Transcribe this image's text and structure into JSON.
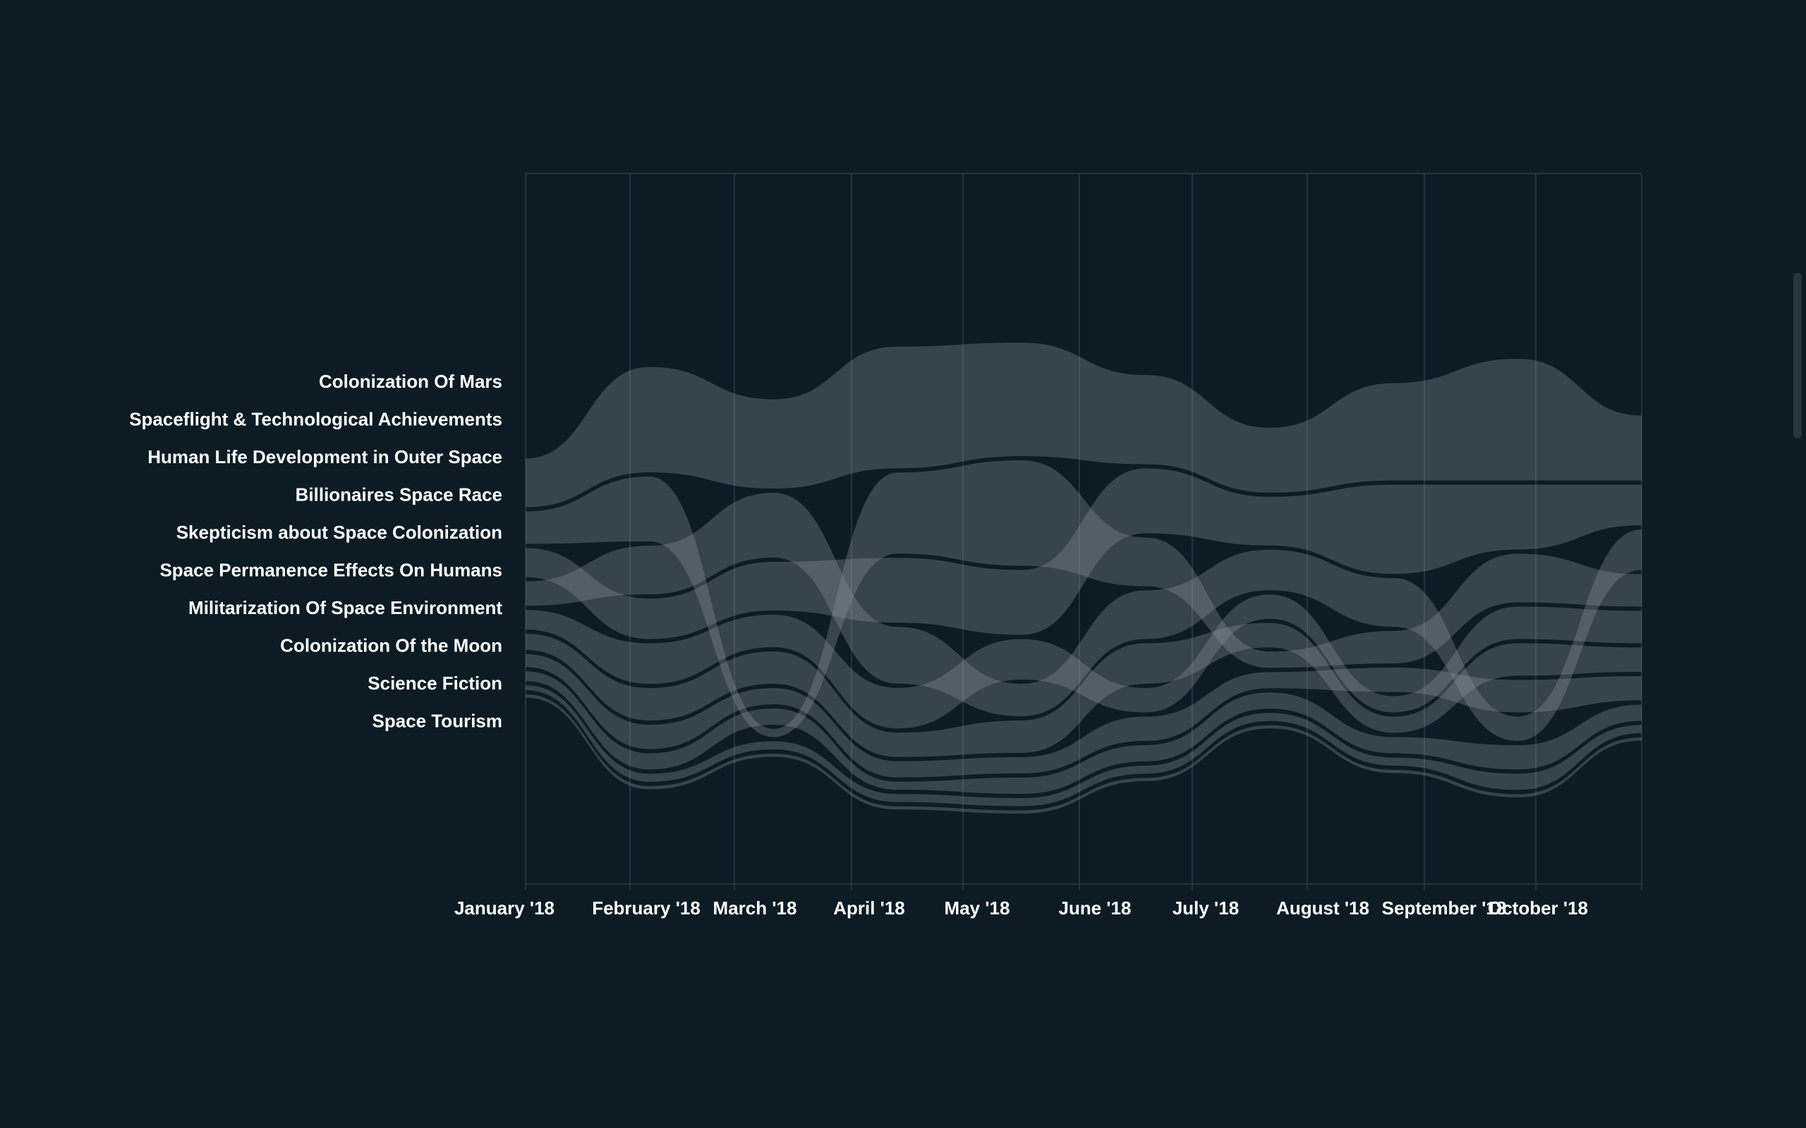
{
  "chart_data": {
    "type": "area",
    "categories": [
      "Colonization Of Mars",
      "Spaceflight & Technological Achievements",
      "Human Life Development in Outer Space",
      "Billionaires Space Race",
      "Skepticism about Space Colonization",
      "Space Permanence Effects On Humans",
      "Militarization Of Space Environment",
      "Colonization Of the Moon",
      "Science Fiction",
      "Space Tourism"
    ],
    "x": [
      "January '18",
      "February '18",
      "March '18",
      "April '18",
      "May '18",
      "June '18",
      "July '18",
      "August '18",
      "September '18",
      "October '18"
    ],
    "grid": true,
    "legend": "left",
    "colors": {
      "background": "#0d1c24",
      "band": "#8c98a0",
      "text": "#ffffff",
      "grid": "#2c3d46"
    },
    "series": [
      {
        "name": "Colonization Of Mars",
        "values": [
          30,
          65,
          55,
          75,
          70,
          55,
          40,
          60,
          75,
          40
        ]
      },
      {
        "name": "Spaceflight & Technological Achievements",
        "values": [
          20,
          40,
          5,
          50,
          65,
          30,
          10,
          20,
          30,
          20
        ]
      },
      {
        "name": "Human Life Development in Outer Space",
        "values": [
          18,
          25,
          30,
          40,
          40,
          40,
          30,
          55,
          40,
          25
        ]
      },
      {
        "name": "Billionaires Space Race",
        "values": [
          15,
          30,
          40,
          35,
          20,
          30,
          25,
          30,
          15,
          25
        ]
      },
      {
        "name": "Skepticism about Space Colonization",
        "values": [
          12,
          25,
          20,
          25,
          25,
          15,
          15,
          10,
          20,
          20
        ]
      },
      {
        "name": "Space Permanence Effects On Humans",
        "values": [
          10,
          20,
          20,
          15,
          20,
          25,
          15,
          10,
          20,
          15
        ]
      },
      {
        "name": "Militarization Of Space Environment",
        "values": [
          8,
          15,
          10,
          10,
          10,
          15,
          10,
          15,
          20,
          15
        ]
      },
      {
        "name": "Colonization Of the Moon",
        "values": [
          6,
          10,
          10,
          5,
          10,
          10,
          10,
          10,
          15,
          10
        ]
      },
      {
        "name": "Science Fiction",
        "values": [
          3,
          5,
          5,
          5,
          5,
          5,
          5,
          5,
          10,
          5
        ]
      },
      {
        "name": "Space Tourism",
        "values": [
          2,
          2,
          2,
          2,
          2,
          2,
          2,
          2,
          2,
          2
        ]
      }
    ]
  }
}
